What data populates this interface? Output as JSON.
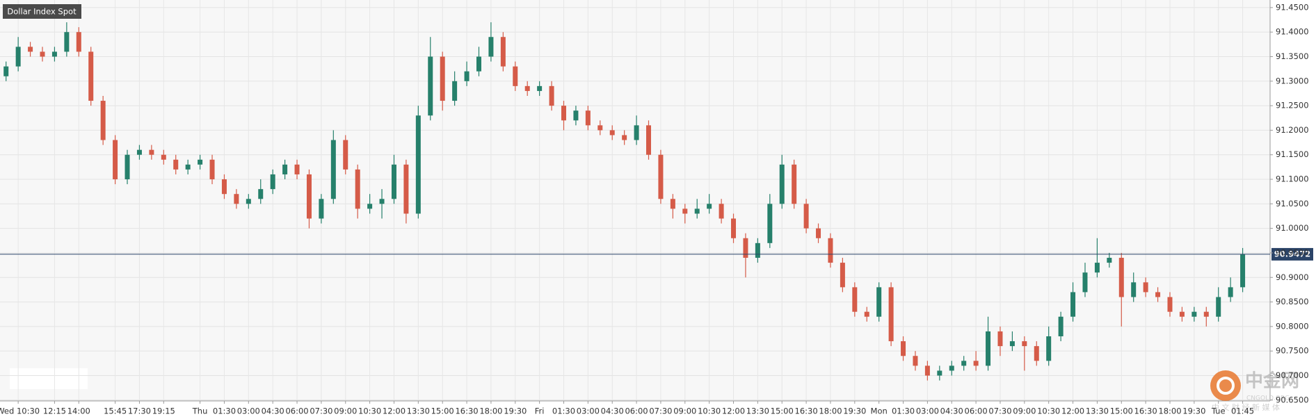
{
  "chart_data": {
    "type": "candlestick",
    "title": "Dollar Index Spot",
    "categories": [
      null,
      "Wed 10:30",
      null,
      null,
      "12:15",
      null,
      "14:00",
      null,
      null,
      "15:45",
      null,
      "17:30",
      null,
      "19:15",
      null,
      null,
      "Thu",
      null,
      "01:30",
      null,
      "03:00",
      null,
      "04:30",
      null,
      "06:00",
      null,
      "07:30",
      null,
      "09:00",
      null,
      "10:30",
      null,
      "12:00",
      null,
      "13:30",
      null,
      "15:00",
      null,
      "16:30",
      null,
      "18:00",
      null,
      "19:30",
      null,
      "Fri",
      null,
      "01:30",
      null,
      "03:00",
      null,
      "04:30",
      null,
      "06:00",
      null,
      "07:30",
      null,
      "09:00",
      null,
      "10:30",
      null,
      "12:00",
      null,
      "13:30",
      null,
      "15:00",
      null,
      "16:30",
      null,
      "18:00",
      null,
      "19:30",
      null,
      "Mon",
      null,
      "01:30",
      null,
      "03:00",
      null,
      "04:30",
      null,
      "06:00",
      null,
      "07:30",
      null,
      "09:00",
      null,
      "10:30",
      null,
      "12:00",
      null,
      "13:30",
      null,
      "15:00",
      null,
      "16:30",
      null,
      "18:00",
      null,
      "19:30",
      null,
      "Tue",
      null,
      "01:45"
    ],
    "open": [
      91.31,
      91.33,
      91.37,
      91.36,
      91.35,
      91.36,
      91.4,
      91.36,
      91.26,
      91.18,
      91.1,
      91.15,
      91.16,
      91.15,
      91.14,
      91.12,
      91.13,
      91.14,
      91.1,
      91.07,
      91.05,
      91.06,
      91.08,
      91.11,
      91.13,
      91.11,
      91.02,
      91.06,
      91.18,
      91.12,
      91.04,
      91.05,
      91.06,
      91.13,
      91.03,
      91.23,
      91.35,
      91.26,
      91.3,
      91.32,
      91.35,
      91.39,
      91.33,
      91.29,
      91.28,
      91.29,
      91.25,
      91.22,
      91.24,
      91.21,
      91.2,
      91.19,
      91.18,
      91.21,
      91.15,
      91.06,
      91.04,
      91.03,
      91.04,
      91.05,
      91.02,
      90.98,
      90.94,
      90.97,
      91.05,
      91.13,
      91.05,
      91.0,
      90.98,
      90.93,
      90.88,
      90.83,
      90.82,
      90.88,
      90.77,
      90.74,
      90.72,
      90.7,
      90.71,
      90.72,
      90.73,
      90.72,
      90.79,
      90.76,
      90.77,
      90.76,
      90.73,
      90.78,
      90.82,
      90.87,
      90.91,
      90.93,
      90.94,
      90.86,
      90.89,
      90.87,
      90.86,
      90.83,
      90.82,
      90.83,
      90.82,
      90.86,
      90.88
    ],
    "high": [
      91.34,
      91.39,
      91.38,
      91.37,
      91.37,
      91.42,
      91.41,
      91.37,
      91.27,
      91.19,
      91.16,
      91.17,
      91.17,
      91.16,
      91.15,
      91.14,
      91.15,
      91.15,
      91.11,
      91.08,
      91.07,
      91.1,
      91.12,
      91.14,
      91.14,
      91.12,
      91.07,
      91.2,
      91.19,
      91.13,
      91.07,
      91.08,
      91.15,
      91.14,
      91.25,
      91.39,
      91.36,
      91.32,
      91.34,
      91.37,
      91.42,
      91.4,
      91.34,
      91.3,
      91.3,
      91.3,
      91.26,
      91.25,
      91.25,
      91.22,
      91.21,
      91.2,
      91.23,
      91.22,
      91.16,
      91.07,
      91.05,
      91.06,
      91.07,
      91.06,
      91.03,
      90.99,
      90.98,
      91.07,
      91.15,
      91.14,
      91.06,
      91.01,
      90.99,
      90.94,
      90.89,
      90.84,
      90.89,
      90.89,
      90.78,
      90.75,
      90.73,
      90.72,
      90.73,
      90.74,
      90.75,
      90.82,
      90.8,
      90.79,
      90.78,
      90.77,
      90.8,
      90.83,
      90.89,
      90.93,
      90.98,
      90.95,
      90.95,
      90.91,
      90.9,
      90.88,
      90.87,
      90.84,
      90.84,
      90.84,
      90.88,
      90.9,
      90.96
    ],
    "low": [
      91.3,
      91.32,
      91.35,
      91.34,
      91.34,
      91.35,
      91.35,
      91.25,
      91.17,
      91.09,
      91.09,
      91.14,
      91.14,
      91.13,
      91.11,
      91.11,
      91.12,
      91.09,
      91.06,
      91.04,
      91.04,
      91.05,
      91.07,
      91.1,
      91.1,
      91.0,
      91.01,
      91.05,
      91.11,
      91.02,
      91.03,
      91.02,
      91.05,
      91.01,
      91.02,
      91.22,
      91.24,
      91.25,
      91.29,
      91.31,
      91.34,
      91.32,
      91.28,
      91.27,
      91.27,
      91.24,
      91.2,
      91.21,
      91.2,
      91.19,
      91.18,
      91.17,
      91.17,
      91.14,
      91.05,
      91.02,
      91.01,
      91.02,
      91.03,
      91.01,
      90.97,
      90.9,
      90.93,
      90.96,
      91.04,
      91.04,
      90.99,
      90.97,
      90.92,
      90.87,
      90.82,
      90.81,
      90.81,
      90.76,
      90.73,
      90.71,
      90.69,
      90.69,
      90.7,
      90.71,
      90.71,
      90.71,
      90.74,
      90.75,
      90.71,
      90.72,
      90.72,
      90.77,
      90.81,
      90.86,
      90.9,
      90.92,
      90.8,
      90.85,
      90.86,
      90.85,
      90.82,
      90.81,
      90.81,
      90.8,
      90.81,
      90.85,
      90.87
    ],
    "close": [
      91.33,
      91.37,
      91.36,
      91.35,
      91.36,
      91.4,
      91.36,
      91.26,
      91.18,
      91.1,
      91.15,
      91.16,
      91.15,
      91.14,
      91.12,
      91.13,
      91.14,
      91.1,
      91.07,
      91.05,
      91.06,
      91.08,
      91.11,
      91.13,
      91.11,
      91.02,
      91.06,
      91.18,
      91.12,
      91.04,
      91.05,
      91.06,
      91.13,
      91.03,
      91.23,
      91.35,
      91.26,
      91.3,
      91.32,
      91.35,
      91.39,
      91.33,
      91.29,
      91.28,
      91.29,
      91.25,
      91.22,
      91.24,
      91.21,
      91.2,
      91.19,
      91.18,
      91.21,
      91.15,
      91.06,
      91.04,
      91.03,
      91.04,
      91.05,
      91.02,
      90.98,
      90.94,
      90.97,
      91.05,
      91.13,
      91.05,
      91.0,
      90.98,
      90.93,
      90.88,
      90.83,
      90.82,
      90.88,
      90.77,
      90.74,
      90.72,
      90.7,
      90.71,
      90.72,
      90.73,
      90.72,
      90.79,
      90.76,
      90.77,
      90.76,
      90.73,
      90.78,
      90.82,
      90.87,
      90.91,
      90.93,
      90.94,
      90.86,
      90.89,
      90.87,
      90.86,
      90.83,
      90.82,
      90.83,
      90.82,
      90.86,
      90.88,
      90.947
    ],
    "up_color": "#26806b",
    "down_color": "#d55b48",
    "last_price": 90.9472,
    "last_price_color": "#2b4468",
    "ylim": [
      90.6483,
      91.4654
    ],
    "yticks": [
      {
        "value": 91.45,
        "label": "91.4500"
      },
      {
        "value": 91.4,
        "label": "91.4000"
      },
      {
        "value": 91.35,
        "label": "91.3500"
      },
      {
        "value": 91.3,
        "label": "91.3000"
      },
      {
        "value": 91.25,
        "label": "91.2500"
      },
      {
        "value": 91.2,
        "label": "91.2000"
      },
      {
        "value": 91.15,
        "label": "91.1500"
      },
      {
        "value": 91.1,
        "label": "91.1000"
      },
      {
        "value": 91.05,
        "label": "91.0500"
      },
      {
        "value": 91.0,
        "label": "91.0000"
      },
      {
        "value": 90.95,
        "label": "90.9500"
      },
      {
        "value": 90.9,
        "label": "90.9000"
      },
      {
        "value": 90.85,
        "label": "90.8500"
      },
      {
        "value": 90.8,
        "label": "90.8000"
      },
      {
        "value": 90.75,
        "label": "90.7500"
      },
      {
        "value": 90.7,
        "label": "90.7000"
      },
      {
        "value": 90.65,
        "label": "90.6500"
      }
    ],
    "grid": true,
    "watermark": {
      "name": "中金网",
      "site": "CNGOLD.ORG",
      "tagline": "中 文 财 经 新 媒 体"
    }
  }
}
